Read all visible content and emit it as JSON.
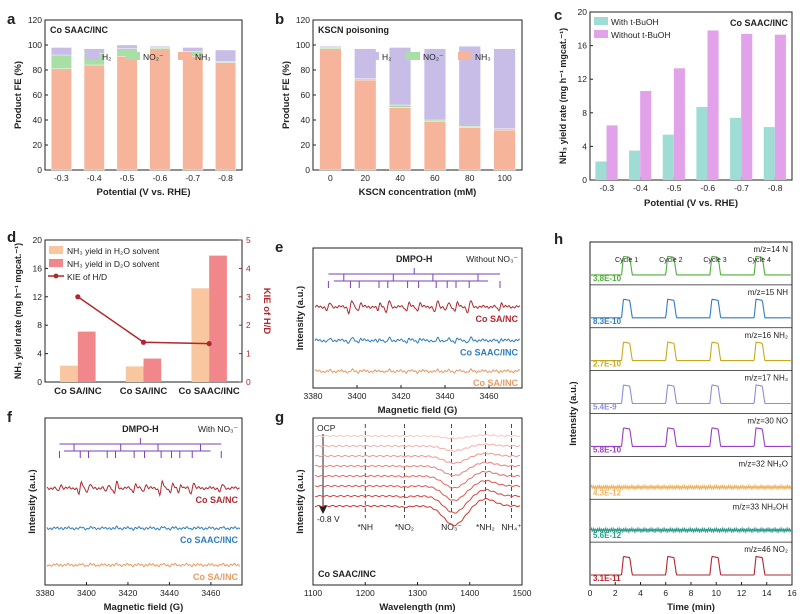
{
  "chart_data": [
    {
      "panel": "a",
      "type": "bar",
      "stacked": true,
      "title": "Co SAAC/INC",
      "xlabel": "Potential (V vs. RHE)",
      "ylabel": "Product FE (%)",
      "ylim": [
        0,
        120
      ],
      "yticks": [
        "0",
        "20",
        "40",
        "60",
        "80",
        "100",
        "120"
      ],
      "categories": [
        "-0.3",
        "-0.4",
        "-0.5",
        "-0.6",
        "-0.7",
        "-0.8"
      ],
      "legend": [
        "H₂",
        "NO₂⁻",
        "NH₃"
      ],
      "series": [
        {
          "name": "NH₃",
          "color": "#f6b49a",
          "values": [
            81,
            84,
            91,
            97,
            91,
            86
          ]
        },
        {
          "name": "NO₂⁻",
          "color": "#a9dfa4",
          "values": [
            11,
            9,
            6,
            1,
            4,
            1
          ]
        },
        {
          "name": "H₂",
          "color": "#c7bde6",
          "values": [
            6,
            4,
            3,
            1,
            3,
            9
          ]
        }
      ]
    },
    {
      "panel": "b",
      "type": "bar",
      "stacked": true,
      "title": "KSCN poisoning",
      "xlabel": "KSCN concentration (mM)",
      "ylabel": "Product FE (%)",
      "ylim": [
        0,
        120
      ],
      "yticks": [
        "0",
        "20",
        "40",
        "60",
        "80",
        "100",
        "120"
      ],
      "categories": [
        "0",
        "20",
        "40",
        "60",
        "80",
        "100"
      ],
      "legend": [
        "H₂",
        "NO₂⁻",
        "NH₃"
      ],
      "series": [
        {
          "name": "NH₃",
          "color": "#f6b49a",
          "values": [
            97,
            72,
            50,
            39,
            34,
            32
          ]
        },
        {
          "name": "NO₂⁻",
          "color": "#a9dfa4",
          "values": [
            1,
            1,
            2,
            1,
            1,
            1
          ]
        },
        {
          "name": "H₂",
          "color": "#c7bde6",
          "values": [
            1,
            24,
            46,
            57,
            64,
            64
          ]
        }
      ]
    },
    {
      "panel": "c",
      "type": "bar",
      "title": "Co SAAC/INC",
      "xlabel": "Potential (V vs. RHE)",
      "ylabel": "NH₃ yield rate (mg h⁻¹ mgcat.⁻¹)",
      "ylim": [
        0,
        20
      ],
      "yticks": [
        "0",
        "4",
        "8",
        "12",
        "16",
        "20"
      ],
      "categories": [
        "-0.3",
        "-0.4",
        "-0.5",
        "-0.6",
        "-0.7",
        "-0.8"
      ],
      "series": [
        {
          "name": "With t-BuOH",
          "color": "#9fdcd3",
          "values": [
            2.2,
            3.5,
            5.4,
            8.7,
            7.4,
            6.3
          ]
        },
        {
          "name": "Without t-BuOH",
          "color": "#e2a2ea",
          "values": [
            6.5,
            10.6,
            13.3,
            17.8,
            17.4,
            17.3
          ]
        }
      ]
    },
    {
      "panel": "d",
      "type": "bar",
      "xlabel": "",
      "ylabel": "NH₃ yield rate (mg h⁻¹ mgcat.⁻¹)",
      "y2label": "KIE of H/D",
      "ylim": [
        0,
        20
      ],
      "yticks": [
        "0",
        "4",
        "8",
        "12",
        "16",
        "20"
      ],
      "y2lim": [
        0,
        5
      ],
      "y2ticks": [
        "0",
        "1",
        "2",
        "3",
        "4",
        "5"
      ],
      "categories": [
        "Co SA/INC",
        "Co SA/INC",
        "Co SAAC/INC"
      ],
      "series": [
        {
          "name": "NH₃ yield in H₂O solvent",
          "color": "#f8c79f",
          "values": [
            2.3,
            2.2,
            13.2
          ]
        },
        {
          "name": "NH₃ yield in D₂O solvent",
          "color": "#f2878b",
          "values": [
            7.1,
            3.3,
            17.8
          ]
        },
        {
          "name": "KIE of H/D",
          "color": "#b0272e",
          "axis": "right",
          "values": [
            3.0,
            1.4,
            1.35
          ]
        }
      ]
    },
    {
      "panel": "e",
      "type": "line",
      "title": "Without NO₃⁻",
      "annotation": "DMPO-H",
      "xlabel": "Magnetic field (G)",
      "ylabel": "Intensity (a.u.)",
      "xlim": [
        3380,
        3475
      ],
      "xticks": [
        "3380",
        "3400",
        "3420",
        "3440",
        "3460"
      ],
      "peaks": [
        3387,
        3397,
        3401,
        3410,
        3414,
        3423,
        3428,
        3436,
        3441,
        3445,
        3451,
        3465
      ],
      "series": [
        {
          "name": "Co SA/NC",
          "color": "#b0272e",
          "amplitude": 1.0
        },
        {
          "name": "Co SAAC/INC",
          "color": "#2f7dc0",
          "amplitude": 0.4
        },
        {
          "name": "Co SA/INC",
          "color": "#e99a62",
          "amplitude": 0.15
        }
      ]
    },
    {
      "panel": "f",
      "type": "line",
      "title": "With NO₃⁻",
      "annotation": "DMPO-H",
      "xlabel": "Magnetic field (G)",
      "ylabel": "Intensity (a.u.)",
      "xlim": [
        3380,
        3475
      ],
      "xticks": [
        "3380",
        "3400",
        "3420",
        "3440",
        "3460"
      ],
      "peaks": [
        3387,
        3397,
        3401,
        3410,
        3414,
        3423,
        3428,
        3436,
        3441,
        3445,
        3451,
        3465
      ],
      "series": [
        {
          "name": "Co SA/NC",
          "color": "#b0272e",
          "amplitude": 1.0
        },
        {
          "name": "Co SAAC/INC",
          "color": "#2f7dc0",
          "amplitude": 0.12
        },
        {
          "name": "Co SA/INC",
          "color": "#e99a62",
          "amplitude": 0.1
        }
      ]
    },
    {
      "panel": "g",
      "type": "line",
      "title": "Co SAAC/INC",
      "xlabel": "Wavelength (nm)",
      "ylabel": "Intensity (a.u.)",
      "xlim": [
        1100,
        1500
      ],
      "xticks": [
        "1100",
        "1200",
        "1300",
        "1400",
        "1500"
      ],
      "markers": [
        {
          "label": "*NH",
          "x": 1200
        },
        {
          "label": "*NO₂",
          "x": 1275
        },
        {
          "label": "NO₃⁻",
          "x": 1365
        },
        {
          "label": "*NH₂",
          "x": 1430
        },
        {
          "label": "NH₄⁺",
          "x": 1480
        }
      ],
      "top_label": "OCP",
      "bottom_label": "-0.8 V",
      "series_count": 8
    },
    {
      "panel": "h",
      "type": "line",
      "xlabel": "Time (min)",
      "ylabel": "Intensity (a.u.)",
      "xlim": [
        0,
        16
      ],
      "xticks": [
        "0",
        "2",
        "4",
        "6",
        "8",
        "10",
        "12",
        "14",
        "16"
      ],
      "cycle_labels": [
        "Cycle 1",
        "Cycle 2",
        "Cycle 3",
        "Cycle 4"
      ],
      "cycle_times": [
        2.5,
        6,
        9.5,
        13
      ],
      "series": [
        {
          "mz": "m/z=14 N",
          "scale": "3.8E-10",
          "color": "#4fae3b",
          "pulses": true
        },
        {
          "mz": "m/z=15 NH",
          "scale": "8.3E-10",
          "color": "#2f7dc0",
          "pulses": true
        },
        {
          "mz": "m/z=16 NH₂",
          "scale": "2.7E-10",
          "color": "#c9a91c",
          "pulses": true
        },
        {
          "mz": "m/z=17 NH₃",
          "scale": "5.4E-9",
          "color": "#8a8fd8",
          "pulses": true
        },
        {
          "mz": "m/z=30 NO",
          "scale": "5.8E-10",
          "color": "#9a3fc6",
          "pulses": true
        },
        {
          "mz": "m/z=32 NH₂O",
          "scale": "4.3E-12",
          "color": "#f0b25e",
          "pulses": false
        },
        {
          "mz": "m/z=33 NH₂OH",
          "scale": "5.6E-12",
          "color": "#2a9a8a",
          "pulses": false
        },
        {
          "mz": "m/z=46 NO₂",
          "scale": "3.1E-11",
          "color": "#b0272e",
          "pulses": true
        }
      ]
    }
  ]
}
